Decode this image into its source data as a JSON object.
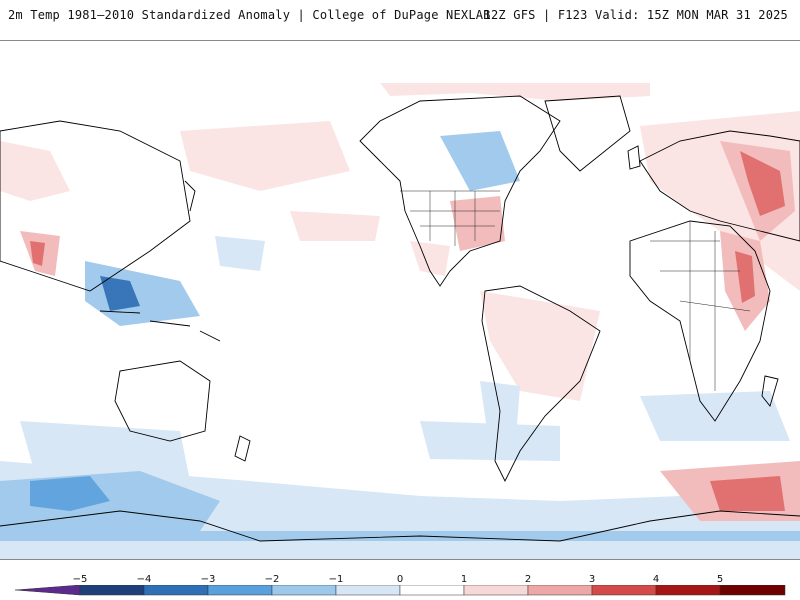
{
  "header": {
    "title_left": "2m Temp 1981–2010 Standardized Anomaly | College of DuPage NEXLAB",
    "title_right": "12Z GFS | F123 Valid: 15Z MON MAR 31 2025"
  },
  "colorbar": {
    "ticks": [
      "−5",
      "−4",
      "−3",
      "−2",
      "−1",
      "0",
      "1",
      "2",
      "3",
      "4",
      "5"
    ],
    "colors": [
      "#5b2a8c",
      "#1f3f7a",
      "#2f6fb6",
      "#5aa0dc",
      "#9cc8ec",
      "#d6e6f5",
      "#ffffff",
      "#f7d8d8",
      "#eda7a7",
      "#d44a4a",
      "#a51616",
      "#6e0000",
      "#f2b418"
    ]
  },
  "map": {
    "palette": {
      "cold_light": "#d6e6f5",
      "cold_mid": "#9cc8ec",
      "cold_strong": "#5aa0dc",
      "cold_deep": "#2f6fb6",
      "warm_light": "#fbe3e3",
      "warm_mid": "#f2b9b9",
      "warm_strong": "#e06a6a",
      "warm_deep": "#b81c1c",
      "coast": "#000000"
    }
  }
}
